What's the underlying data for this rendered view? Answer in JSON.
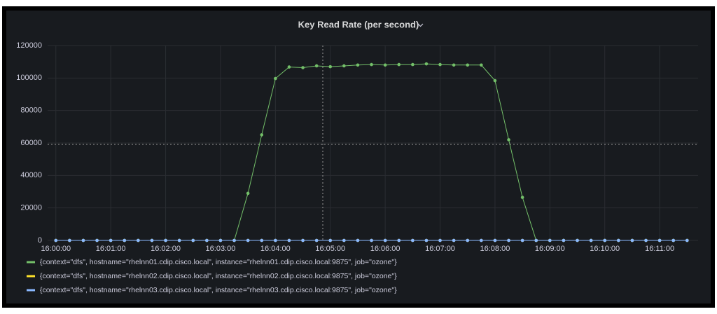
{
  "chart_data": {
    "type": "line",
    "title": "Key Read Rate (per second)",
    "x": [
      "16:00:00",
      "16:00:15",
      "16:00:30",
      "16:00:45",
      "16:01:00",
      "16:01:15",
      "16:01:30",
      "16:01:45",
      "16:02:00",
      "16:02:15",
      "16:02:30",
      "16:02:45",
      "16:03:00",
      "16:03:15",
      "16:03:30",
      "16:03:45",
      "16:04:00",
      "16:04:15",
      "16:04:30",
      "16:04:45",
      "16:05:00",
      "16:05:15",
      "16:05:30",
      "16:05:45",
      "16:06:00",
      "16:06:15",
      "16:06:30",
      "16:06:45",
      "16:07:00",
      "16:07:15",
      "16:07:30",
      "16:07:45",
      "16:08:00",
      "16:08:15",
      "16:08:30",
      "16:08:45",
      "16:09:00",
      "16:09:15",
      "16:09:30",
      "16:09:45",
      "16:10:00",
      "16:10:15",
      "16:10:30",
      "16:10:45",
      "16:11:00",
      "16:11:15",
      "16:11:30"
    ],
    "series": [
      {
        "name": "{context=\"dfs\", hostname=\"rhelnn01.cdip.cisco.local\", instance=\"rhelnn01.cdip.cisco.local:9875\", job=\"ozone\"}",
        "color": "#73bf69",
        "values": [
          0,
          0,
          0,
          0,
          0,
          0,
          0,
          0,
          0,
          0,
          0,
          0,
          0,
          0,
          29000,
          65000,
          99700,
          106800,
          106400,
          107500,
          107000,
          107500,
          108000,
          108300,
          108000,
          108300,
          108300,
          108700,
          108300,
          108000,
          108000,
          108000,
          98400,
          62000,
          26500,
          0,
          0,
          0,
          0,
          0,
          0,
          0,
          0,
          0,
          0,
          0,
          0
        ]
      },
      {
        "name": "{context=\"dfs\", hostname=\"rhelnn02.cdip.cisco.local\", instance=\"rhelnn02.cdip.cisco.local:9875\", job=\"ozone\"}",
        "color": "#fade2a",
        "values": [
          0,
          0,
          0,
          0,
          0,
          0,
          0,
          0,
          0,
          0,
          0,
          0,
          0,
          0,
          0,
          0,
          0,
          0,
          0,
          0,
          0,
          0,
          0,
          0,
          0,
          0,
          0,
          0,
          0,
          0,
          0,
          0,
          0,
          0,
          0,
          0,
          0,
          0,
          0,
          0,
          0,
          0,
          0,
          0,
          0,
          0,
          0
        ]
      },
      {
        "name": "{context=\"dfs\", hostname=\"rhelnn03.cdip.cisco.local\", instance=\"rhelnn03.cdip.cisco.local:9875\", job=\"ozone\"}",
        "color": "#8ab8ff",
        "values": [
          0,
          0,
          0,
          0,
          0,
          0,
          0,
          0,
          0,
          0,
          0,
          0,
          0,
          0,
          0,
          0,
          0,
          0,
          0,
          0,
          0,
          0,
          0,
          0,
          0,
          0,
          0,
          0,
          0,
          0,
          0,
          0,
          0,
          0,
          0,
          0,
          0,
          0,
          0,
          0,
          0,
          0,
          0,
          0,
          0,
          0,
          0
        ]
      }
    ],
    "xlim": [
      "15:59:51",
      "16:11:42"
    ],
    "xticks": [
      "16:00:00",
      "16:01:00",
      "16:02:00",
      "16:03:00",
      "16:04:00",
      "16:05:00",
      "16:06:00",
      "16:07:00",
      "16:08:00",
      "16:09:00",
      "16:10:00",
      "16:11:00"
    ],
    "ylim": [
      0,
      120000
    ],
    "yticks": [
      0,
      20000,
      40000,
      60000,
      80000,
      100000,
      120000
    ],
    "grid": true
  }
}
